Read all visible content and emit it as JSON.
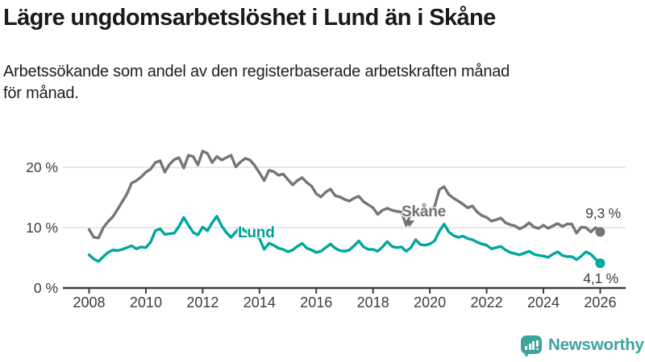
{
  "header": {
    "title": "Lägre ungdomsarbetslöshet i Lund än i Skåne",
    "subtitle": "Arbetssökande som andel av den registerbaserade arbetskraften månad\nför månad."
  },
  "chart_data": {
    "type": "line",
    "x_start": 2008.0,
    "x_step_years": 0.166667,
    "xlim": [
      2008,
      2026.1
    ],
    "ylim": [
      0,
      24
    ],
    "grid": "horizontal-only",
    "legend_position": "inline-labels",
    "x_ticks": [
      2008,
      2010,
      2012,
      2014,
      2016,
      2018,
      2020,
      2022,
      2024,
      2026
    ],
    "y_ticks": [
      {
        "value": 0,
        "label": "0 %"
      },
      {
        "value": 10,
        "label": "10 %"
      },
      {
        "value": 20,
        "label": "20 %"
      }
    ],
    "series": [
      {
        "name": "Skåne",
        "color": "#74747a",
        "end_label": "9,3 %",
        "last_value": 9.3,
        "values": [
          9.7,
          8.4,
          8.3,
          10.0,
          11.0,
          11.8,
          13.0,
          14.3,
          15.6,
          17.4,
          17.8,
          18.4,
          19.2,
          19.7,
          20.8,
          21.1,
          19.2,
          20.5,
          21.3,
          21.6,
          19.9,
          22.0,
          21.8,
          20.4,
          22.7,
          22.3,
          20.8,
          21.8,
          21.2,
          21.6,
          22.0,
          20.1,
          20.9,
          21.5,
          21.2,
          20.3,
          19.1,
          17.8,
          19.5,
          19.3,
          18.7,
          18.9,
          18.0,
          17.1,
          17.8,
          18.3,
          17.5,
          16.9,
          15.6,
          15.1,
          15.9,
          16.4,
          15.3,
          15.1,
          14.7,
          14.4,
          14.9,
          15.2,
          14.3,
          13.8,
          13.3,
          12.2,
          12.9,
          13.2,
          12.9,
          12.7,
          12.6,
          10.4,
          12.4,
          12.7,
          12.3,
          12.6,
          12.9,
          13.5,
          16.3,
          16.8,
          15.5,
          14.9,
          14.4,
          13.9,
          13.3,
          13.6,
          12.6,
          12.0,
          11.7,
          11.1,
          11.3,
          11.6,
          10.8,
          10.5,
          10.3,
          9.8,
          10.2,
          10.8,
          10.1,
          9.9,
          10.4,
          9.9,
          10.3,
          10.7,
          10.2,
          10.6,
          10.6,
          9.1,
          10.1,
          10.0,
          9.3,
          10.0,
          9.3
        ]
      },
      {
        "name": "Lund",
        "color": "#00a79c",
        "end_label": "4,1 %",
        "last_value": 4.1,
        "values": [
          5.5,
          4.8,
          4.4,
          5.2,
          5.9,
          6.3,
          6.2,
          6.4,
          6.7,
          7.0,
          6.5,
          6.8,
          6.7,
          7.6,
          9.5,
          9.8,
          8.9,
          9.0,
          9.1,
          10.2,
          11.7,
          10.4,
          9.2,
          8.8,
          10.1,
          9.5,
          10.8,
          11.9,
          10.3,
          9.2,
          8.4,
          9.3,
          10.1,
          9.4,
          8.9,
          8.7,
          8.2,
          6.4,
          7.4,
          7.1,
          6.6,
          6.4,
          6.0,
          6.3,
          6.9,
          7.4,
          6.6,
          6.3,
          5.9,
          6.1,
          6.7,
          7.3,
          6.6,
          6.2,
          6.1,
          6.3,
          7.0,
          7.8,
          6.8,
          6.4,
          6.4,
          6.1,
          6.8,
          7.7,
          6.9,
          6.7,
          6.8,
          6.1,
          6.7,
          8.0,
          7.2,
          7.1,
          7.3,
          7.8,
          9.4,
          10.6,
          9.3,
          8.7,
          8.4,
          8.6,
          8.2,
          8.0,
          7.6,
          7.3,
          7.1,
          6.5,
          6.7,
          6.9,
          6.3,
          5.9,
          5.7,
          5.5,
          5.8,
          6.1,
          5.6,
          5.4,
          5.3,
          5.1,
          5.6,
          6.0,
          5.4,
          5.2,
          5.2,
          4.7,
          5.3,
          6.0,
          5.6,
          4.8,
          4.1
        ]
      }
    ],
    "colors": {
      "gridline": "#e1e1e1",
      "axis": "#3d3d3d",
      "tick_text": "#3d3d3d"
    }
  },
  "footer": {
    "brand": "Newsworthy",
    "brand_color": "#3ba49d",
    "icon": "bar-chart-speech-bubble-icon"
  }
}
